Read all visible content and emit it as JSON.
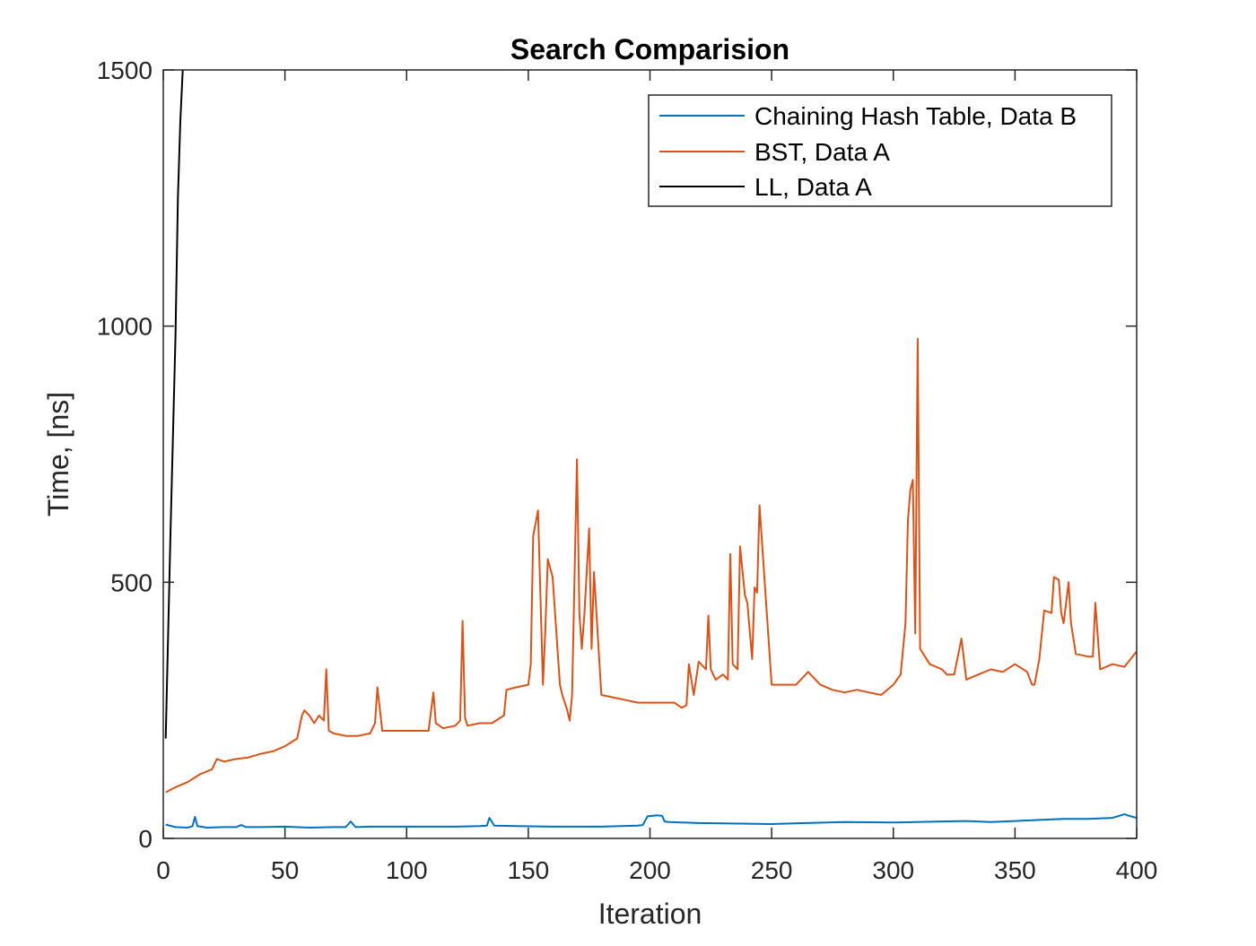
{
  "chart_data": {
    "type": "line",
    "title": "Search Comparision",
    "xlabel": "Iteration",
    "ylabel": "Time, [ns]",
    "xlim": [
      0,
      400
    ],
    "ylim": [
      0,
      1500
    ],
    "xticks": [
      0,
      50,
      100,
      150,
      200,
      250,
      300,
      350,
      400
    ],
    "yticks": [
      0,
      500,
      1000,
      1500
    ],
    "grid": false,
    "legend_position": "top-right",
    "series": [
      {
        "name": "Chaining Hash Table, Data B",
        "color": "#0072BD",
        "x": [
          1,
          5,
          10,
          12,
          13,
          14,
          18,
          25,
          30,
          32,
          34,
          40,
          50,
          60,
          70,
          75,
          77,
          79,
          85,
          100,
          120,
          130,
          133,
          134,
          136,
          145,
          160,
          180,
          195,
          197,
          199,
          203,
          205,
          206,
          208,
          220,
          250,
          280,
          300,
          320,
          330,
          340,
          350,
          360,
          370,
          380,
          390,
          395,
          397,
          400
        ],
        "y": [
          27,
          22,
          21,
          24,
          42,
          24,
          21,
          22,
          22,
          26,
          22,
          22,
          23,
          21,
          22,
          22,
          33,
          22,
          23,
          23,
          23,
          24,
          25,
          40,
          25,
          24,
          23,
          23,
          25,
          26,
          43,
          45,
          44,
          33,
          32,
          30,
          28,
          32,
          31,
          33,
          34,
          32,
          34,
          36,
          38,
          38,
          40,
          47,
          44,
          40
        ]
      },
      {
        "name": "BST, Data A",
        "color": "#D95319",
        "x": [
          1,
          5,
          10,
          15,
          20,
          22,
          25,
          30,
          35,
          40,
          45,
          50,
          55,
          57,
          58,
          60,
          62,
          64,
          66,
          67,
          68,
          70,
          75,
          80,
          85,
          87,
          88,
          90,
          95,
          100,
          105,
          109,
          111,
          112,
          115,
          120,
          122,
          123,
          124,
          125,
          130,
          135,
          140,
          141,
          145,
          150,
          151,
          152,
          154,
          156,
          157,
          158,
          160,
          163,
          164,
          166,
          167,
          168,
          170,
          171,
          172,
          173,
          175,
          176,
          177,
          180,
          185,
          190,
          195,
          200,
          205,
          210,
          213,
          215,
          216,
          218,
          220,
          223,
          224,
          225,
          227,
          230,
          232,
          233,
          234,
          236,
          237,
          239,
          240,
          242,
          243,
          244,
          245,
          250,
          255,
          260,
          265,
          270,
          275,
          280,
          285,
          290,
          295,
          300,
          303,
          305,
          306,
          307,
          308,
          309,
          310,
          311,
          315,
          320,
          322,
          325,
          328,
          330,
          335,
          340,
          345,
          350,
          355,
          357,
          358,
          360,
          362,
          365,
          366,
          368,
          369,
          370,
          372,
          373,
          375,
          380,
          382,
          383,
          385,
          390,
          395,
          400
        ],
        "y": [
          90,
          100,
          110,
          125,
          135,
          155,
          150,
          155,
          158,
          165,
          170,
          180,
          195,
          240,
          250,
          240,
          225,
          240,
          230,
          330,
          210,
          205,
          200,
          200,
          205,
          225,
          295,
          210,
          210,
          210,
          210,
          210,
          285,
          225,
          215,
          220,
          230,
          425,
          235,
          220,
          225,
          225,
          240,
          290,
          295,
          300,
          340,
          590,
          640,
          300,
          410,
          545,
          510,
          300,
          280,
          250,
          230,
          280,
          740,
          440,
          370,
          435,
          605,
          370,
          520,
          280,
          275,
          270,
          265,
          265,
          265,
          265,
          255,
          260,
          340,
          280,
          345,
          330,
          435,
          330,
          310,
          320,
          310,
          555,
          340,
          330,
          570,
          475,
          460,
          350,
          490,
          480,
          650,
          300,
          300,
          300,
          325,
          300,
          290,
          285,
          290,
          285,
          280,
          300,
          320,
          420,
          620,
          680,
          700,
          400,
          975,
          370,
          340,
          330,
          320,
          320,
          390,
          310,
          320,
          330,
          325,
          340,
          325,
          300,
          300,
          350,
          445,
          440,
          510,
          505,
          440,
          420,
          500,
          420,
          360,
          355,
          355,
          460,
          330,
          340,
          335,
          365
        ]
      },
      {
        "name": "LL, Data A",
        "color": "#000000",
        "x": [
          1,
          3,
          5,
          6,
          7,
          8
        ],
        "y": [
          195,
          600,
          980,
          1250,
          1400,
          1500
        ]
      }
    ]
  }
}
